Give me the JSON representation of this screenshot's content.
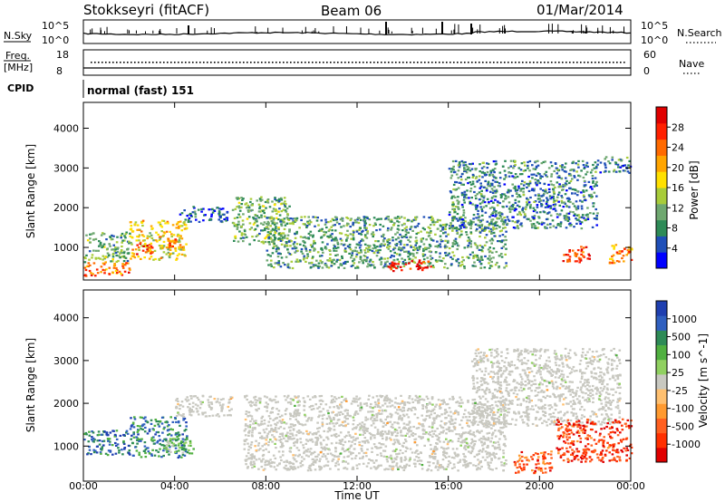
{
  "header": {
    "station": "Stokkseyri (fitACF)",
    "beam": "Beam 06",
    "date": "01/Mar/2014"
  },
  "panels": {
    "nsky_label": "N.Sky",
    "nsearch_label": "N.Search",
    "noise_left_ticks": [
      "10^5",
      "10^0"
    ],
    "noise_right_ticks": [
      "10^5",
      "10^0"
    ],
    "freq_label_1": "Freq.",
    "freq_label_2": "[MHz]",
    "freq_ticks": [
      "18",
      "8"
    ],
    "nave_label": "Nave",
    "nave_ticks": [
      "60",
      "0"
    ],
    "cpid_label": "CPID",
    "cpid_value": "normal (fast) 151"
  },
  "colors": {
    "power": [
      "#0000ff",
      "#1f4fb8",
      "#2e8b57",
      "#6fa870",
      "#a8cc3a",
      "#ffe000",
      "#ffa500",
      "#ff6a00",
      "#ff2000",
      "#e00000"
    ],
    "velocity": [
      "#1f3fb0",
      "#3060c0",
      "#2e8b57",
      "#50b040",
      "#90d060",
      "#c8c8c0",
      "#ffc070",
      "#ff9a30",
      "#ff6020",
      "#ff3000",
      "#e00000"
    ],
    "ground_scatter": "#c8c8c0"
  },
  "chart_data": [
    {
      "type": "heatmap",
      "name": "power-panel",
      "title": "",
      "xlabel": "Time UT",
      "ylabel": "Slant Range [km]",
      "xticks": [
        "00:00",
        "04:00",
        "08:00",
        "12:00",
        "16:00",
        "20:00",
        "00:00"
      ],
      "xlim": [
        0,
        24
      ],
      "ylim": [
        180,
        4650
      ],
      "yticks": [
        1000,
        2000,
        3000,
        4000
      ],
      "colorbar": {
        "label": "Power [dB]",
        "ticks": [
          "4",
          "8",
          "12",
          "16",
          "20",
          "24",
          "28"
        ],
        "range": [
          0,
          32
        ]
      },
      "regions": [
        {
          "t0": 0.0,
          "t1": 2.0,
          "r0": 650,
          "r1": 1400,
          "level": 0.35
        },
        {
          "t0": 0.0,
          "t1": 2.0,
          "r0": 300,
          "r1": 650,
          "level": 0.75
        },
        {
          "t0": 2.0,
          "t1": 4.5,
          "r0": 700,
          "r1": 1700,
          "level": 0.55
        },
        {
          "t0": 2.3,
          "t1": 3.0,
          "r0": 850,
          "r1": 1150,
          "level": 0.9
        },
        {
          "t0": 3.6,
          "t1": 4.3,
          "r0": 950,
          "r1": 1250,
          "level": 0.75
        },
        {
          "t0": 4.2,
          "t1": 6.3,
          "r0": 1650,
          "r1": 2050,
          "level": 0.15
        },
        {
          "t0": 6.5,
          "t1": 9.0,
          "r0": 1100,
          "r1": 2300,
          "level": 0.35
        },
        {
          "t0": 8.0,
          "t1": 18.5,
          "r0": 500,
          "r1": 1800,
          "level": 0.3
        },
        {
          "t0": 13.3,
          "t1": 15.2,
          "r0": 430,
          "r1": 700,
          "level": 0.95
        },
        {
          "t0": 16.0,
          "t1": 22.5,
          "r0": 1500,
          "r1": 3200,
          "level": 0.25
        },
        {
          "t0": 21.0,
          "t1": 22.2,
          "r0": 650,
          "r1": 1050,
          "level": 0.85
        },
        {
          "t0": 23.0,
          "t1": 24.0,
          "r0": 600,
          "r1": 1100,
          "level": 0.7
        },
        {
          "t0": 22.5,
          "t1": 24.0,
          "r0": 2900,
          "r1": 3300,
          "level": 0.25
        }
      ]
    },
    {
      "type": "heatmap",
      "name": "velocity-panel",
      "title": "",
      "xlabel": "Time UT",
      "ylabel": "Slant Range [km]",
      "xticks": [
        "00:00",
        "04:00",
        "08:00",
        "12:00",
        "16:00",
        "20:00",
        "00:00"
      ],
      "xlim": [
        0,
        24
      ],
      "ylim": [
        180,
        4650
      ],
      "yticks": [
        1000,
        2000,
        3000,
        4000
      ],
      "colorbar": {
        "label": "Velocity [m s^-1]",
        "ticks": [
          "1000",
          "500",
          "100",
          "25",
          "-25",
          "-100",
          "-500",
          "-1000"
        ],
        "range": [
          -1200,
          1200
        ]
      },
      "regions": [
        {
          "t0": 0.0,
          "t1": 2.0,
          "r0": 800,
          "r1": 1400,
          "level": 0.15
        },
        {
          "t0": 2.0,
          "t1": 4.5,
          "r0": 750,
          "r1": 1700,
          "level": 0.2
        },
        {
          "t0": 3.5,
          "t1": 4.8,
          "r0": 850,
          "r1": 1200,
          "level": 0.35
        },
        {
          "t0": 4.0,
          "t1": 6.5,
          "r0": 1700,
          "r1": 2200,
          "level": 0.5
        },
        {
          "t0": 7.0,
          "t1": 18.5,
          "r0": 450,
          "r1": 2200,
          "level": 0.5
        },
        {
          "t0": 17.0,
          "t1": 23.5,
          "r0": 1500,
          "r1": 3300,
          "level": 0.5
        },
        {
          "t0": 18.8,
          "t1": 20.5,
          "r0": 380,
          "r1": 900,
          "level": 0.8
        },
        {
          "t0": 20.7,
          "t1": 24.0,
          "r0": 650,
          "r1": 1650,
          "level": 0.85
        }
      ]
    }
  ]
}
